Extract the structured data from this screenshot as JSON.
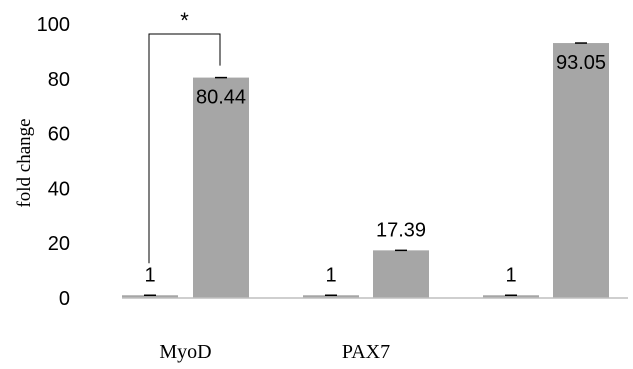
{
  "chart_data": {
    "type": "bar",
    "title": "",
    "xlabel": "",
    "ylabel": "fold change",
    "ylim": [
      0,
      100
    ],
    "yticks": [
      0,
      20,
      40,
      60,
      80,
      100
    ],
    "grid": false,
    "bar_color": "#a6a6a6",
    "bars": [
      {
        "value": 1,
        "label": "1"
      },
      {
        "value": 80.44,
        "label": "80.44"
      },
      {
        "value": 1,
        "label": "1"
      },
      {
        "value": 17.39,
        "label": "17.39"
      },
      {
        "value": 1,
        "label": "1"
      },
      {
        "value": 93.05,
        "label": "93.05"
      }
    ],
    "category_labels": [
      {
        "text": "MyoD",
        "under_bars": [
          0,
          1
        ]
      },
      {
        "text": "PAX7",
        "under_bars": [
          2,
          3
        ]
      }
    ],
    "significance": [
      {
        "bars": [
          0,
          1
        ],
        "symbol": "*"
      }
    ]
  }
}
